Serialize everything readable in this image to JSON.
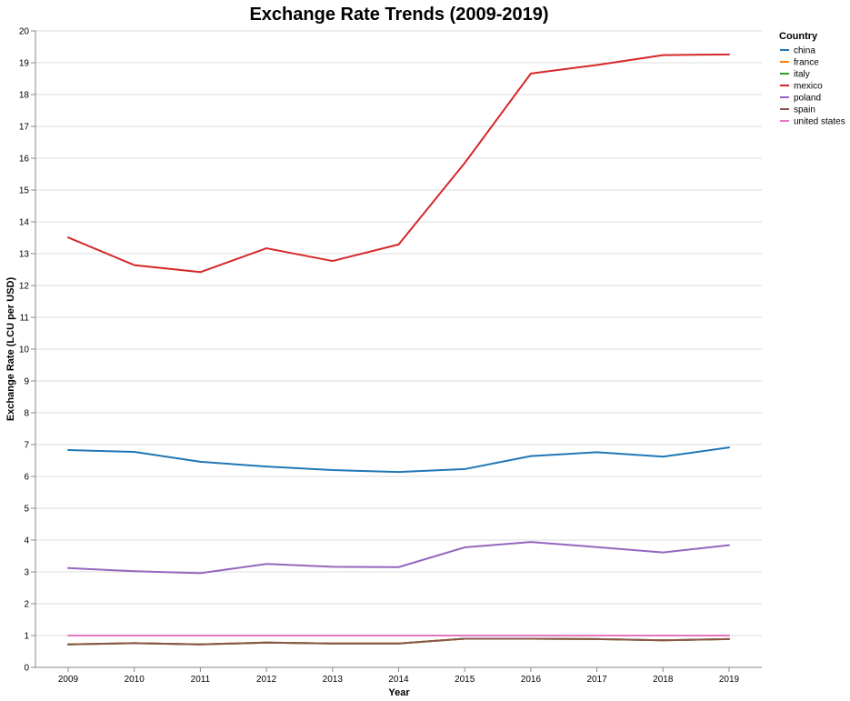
{
  "chart_data": {
    "type": "line",
    "title": "Exchange Rate Trends (2009-2019)",
    "xlabel": "Year",
    "ylabel": "Exchange Rate (LCU per USD)",
    "x": [
      2009,
      2010,
      2011,
      2012,
      2013,
      2014,
      2015,
      2016,
      2017,
      2018,
      2019
    ],
    "ylim": [
      0,
      20
    ],
    "yticks": [
      0,
      1,
      2,
      3,
      4,
      5,
      6,
      7,
      8,
      9,
      10,
      11,
      12,
      13,
      14,
      15,
      16,
      17,
      18,
      19,
      20
    ],
    "grid": "horizontal",
    "legend": {
      "title": "Country",
      "placement": "right"
    },
    "series": [
      {
        "name": "china",
        "color": "#1f77b4",
        "values": [
          6.83,
          6.77,
          6.46,
          6.31,
          6.2,
          6.14,
          6.23,
          6.64,
          6.76,
          6.62,
          6.91
        ]
      },
      {
        "name": "france",
        "color": "#ff7f0e",
        "values": [
          0.72,
          0.76,
          0.72,
          0.78,
          0.75,
          0.75,
          0.9,
          0.9,
          0.89,
          0.85,
          0.89
        ]
      },
      {
        "name": "italy",
        "color": "#2ca02c",
        "values": [
          0.72,
          0.76,
          0.72,
          0.78,
          0.75,
          0.75,
          0.9,
          0.9,
          0.89,
          0.85,
          0.89
        ]
      },
      {
        "name": "mexico",
        "color": "#d62728",
        "values": [
          13.51,
          12.64,
          12.42,
          13.17,
          12.77,
          13.29,
          15.85,
          18.66,
          18.93,
          19.24,
          19.26
        ]
      },
      {
        "name": "poland",
        "color": "#9467bd",
        "values": [
          3.12,
          3.02,
          2.96,
          3.25,
          3.16,
          3.15,
          3.77,
          3.94,
          3.78,
          3.61,
          3.84
        ]
      },
      {
        "name": "spain",
        "color": "#8c564b",
        "values": [
          0.72,
          0.76,
          0.72,
          0.78,
          0.75,
          0.75,
          0.9,
          0.9,
          0.89,
          0.85,
          0.89
        ]
      },
      {
        "name": "united states",
        "color": "#e377c2",
        "values": [
          1,
          1,
          1,
          1,
          1,
          1,
          1,
          1,
          1,
          1,
          1
        ]
      }
    ]
  }
}
